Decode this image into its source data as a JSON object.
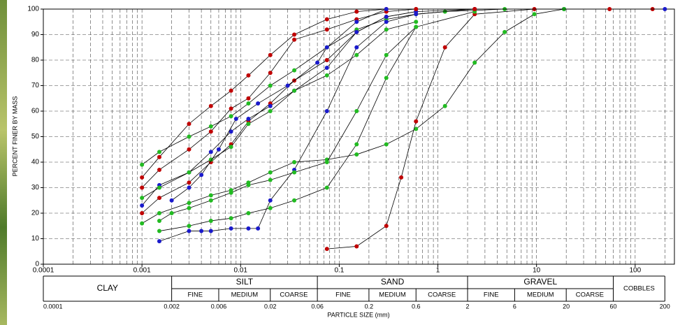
{
  "chart_data": {
    "type": "line",
    "log_x": true,
    "grid": true,
    "minor_grid": true,
    "line_color": "#000000",
    "xlabel": "PARTICLE SIZE (mm)",
    "ylabel": "PERCENT FINER BY MASS",
    "xlim": [
      0.0001,
      250
    ],
    "ylim": [
      0,
      100
    ],
    "xticks": [
      0.0001,
      0.001,
      0.01,
      0.1,
      1,
      10,
      100
    ],
    "yticks": [
      0,
      10,
      20,
      30,
      40,
      50,
      60,
      70,
      80,
      90,
      100
    ],
    "series": [
      {
        "color": "#c00000",
        "x": [
          0.001,
          0.0015,
          0.003,
          0.005,
          0.008,
          0.012,
          0.02,
          0.035,
          0.075,
          0.15,
          0.3,
          0.6,
          2.36,
          19,
          150
        ],
        "values": [
          34,
          42,
          55,
          62,
          68,
          74,
          82,
          90,
          96,
          99,
          100,
          100,
          100,
          100,
          100
        ]
      },
      {
        "color": "#22bb22",
        "x": [
          0.001,
          0.0015,
          0.003,
          0.005,
          0.008,
          0.012,
          0.02,
          0.035,
          0.075,
          0.15,
          0.3,
          0.6,
          1.18,
          4.75,
          19
        ],
        "values": [
          39,
          44,
          50,
          54,
          58,
          63,
          70,
          76,
          85,
          92,
          96,
          98,
          99,
          100,
          100
        ]
      },
      {
        "color": "#1a1acc",
        "x": [
          0.0015,
          0.003,
          0.004,
          0.005,
          0.008,
          0.012,
          0.015,
          0.02,
          0.035,
          0.075,
          0.15,
          0.3,
          0.6,
          2.36,
          19,
          200
        ],
        "values": [
          9,
          13,
          13,
          13,
          14,
          14,
          14,
          25,
          37,
          60,
          85,
          95,
          98,
          100,
          100,
          100
        ]
      },
      {
        "color": "#22bb22",
        "x": [
          0.001,
          0.0015,
          0.003,
          0.005,
          0.008,
          0.012,
          0.02,
          0.035,
          0.075,
          0.15,
          0.3,
          0.6,
          1.18,
          2.36,
          4.75,
          9.5,
          19
        ],
        "values": [
          16,
          20,
          24,
          27,
          29,
          32,
          36,
          40,
          41,
          43,
          47,
          53,
          62,
          79,
          91,
          98,
          100
        ]
      },
      {
        "color": "#c00000",
        "x": [
          0.075,
          0.15,
          0.3,
          0.425,
          0.6,
          1.18,
          2.36,
          9.5
        ],
        "values": [
          6,
          7,
          15,
          34,
          56,
          85,
          98,
          100
        ]
      },
      {
        "color": "#22bb22",
        "x": [
          0.0015,
          0.003,
          0.005,
          0.008,
          0.012,
          0.02,
          0.035,
          0.075,
          0.15,
          0.3,
          0.6,
          2.36
        ],
        "values": [
          13,
          15,
          17,
          18,
          20,
          22,
          25,
          30,
          47,
          73,
          93,
          99
        ]
      },
      {
        "color": "#c00000",
        "x": [
          0.001,
          0.0015,
          0.003,
          0.005,
          0.008,
          0.012,
          0.02,
          0.035,
          0.075,
          0.15,
          0.3,
          0.6,
          2.36
        ],
        "values": [
          20,
          26,
          32,
          40,
          47,
          56,
          63,
          72,
          80,
          91,
          97,
          99,
          100
        ]
      },
      {
        "color": "#1a1acc",
        "x": [
          0.001,
          0.0015,
          0.003,
          0.005,
          0.008,
          0.012,
          0.02,
          0.035,
          0.075,
          0.15,
          0.3,
          0.6
        ],
        "values": [
          23,
          31,
          36,
          44,
          52,
          57,
          62,
          68,
          77,
          91,
          97,
          99
        ]
      },
      {
        "color": "#22bb22",
        "x": [
          0.001,
          0.0015,
          0.003,
          0.005,
          0.008,
          0.012,
          0.02,
          0.035,
          0.075,
          0.15,
          0.3,
          0.6
        ],
        "values": [
          26,
          30,
          36,
          41,
          46,
          55,
          60,
          68,
          74,
          82,
          92,
          95
        ]
      },
      {
        "color": "#c00000",
        "x": [
          0.001,
          0.0015,
          0.003,
          0.005,
          0.008,
          0.012,
          0.02,
          0.035,
          0.075,
          0.15,
          0.3,
          0.6,
          2.36,
          55
        ],
        "values": [
          30,
          37,
          45,
          52,
          61,
          65,
          75,
          88,
          92,
          96,
          99,
          100,
          100,
          100
        ]
      },
      {
        "color": "#22bb22",
        "x": [
          0.0015,
          0.002,
          0.003,
          0.005,
          0.008,
          0.012,
          0.02,
          0.035,
          0.075,
          0.15,
          0.3,
          0.6
        ],
        "values": [
          17,
          20,
          22,
          25,
          28,
          31,
          33,
          36,
          40,
          60,
          82,
          93
        ]
      },
      {
        "color": "#1a1acc",
        "x": [
          0.002,
          0.003,
          0.004,
          0.006,
          0.009,
          0.015,
          0.03,
          0.06,
          0.075,
          0.15,
          0.3
        ],
        "values": [
          25,
          30,
          35,
          45,
          57,
          63,
          70,
          79,
          85,
          95,
          100
        ]
      }
    ],
    "classification": {
      "boundaries": [
        0.0001,
        0.002,
        0.006,
        0.02,
        0.06,
        0.2,
        0.6,
        2,
        6,
        20,
        60,
        200
      ],
      "groups": [
        {
          "name": "CLAY"
        },
        {
          "name": "SILT",
          "subdivisions": [
            "FINE",
            "MEDIUM",
            "COARSE"
          ]
        },
        {
          "name": "SAND",
          "subdivisions": [
            "FINE",
            "MEDIUM",
            "COARSE"
          ]
        },
        {
          "name": "GRAVEL",
          "subdivisions": [
            "FINE",
            "MEDIUM",
            "COARSE"
          ]
        },
        {
          "name": "COBBLES"
        }
      ]
    }
  }
}
